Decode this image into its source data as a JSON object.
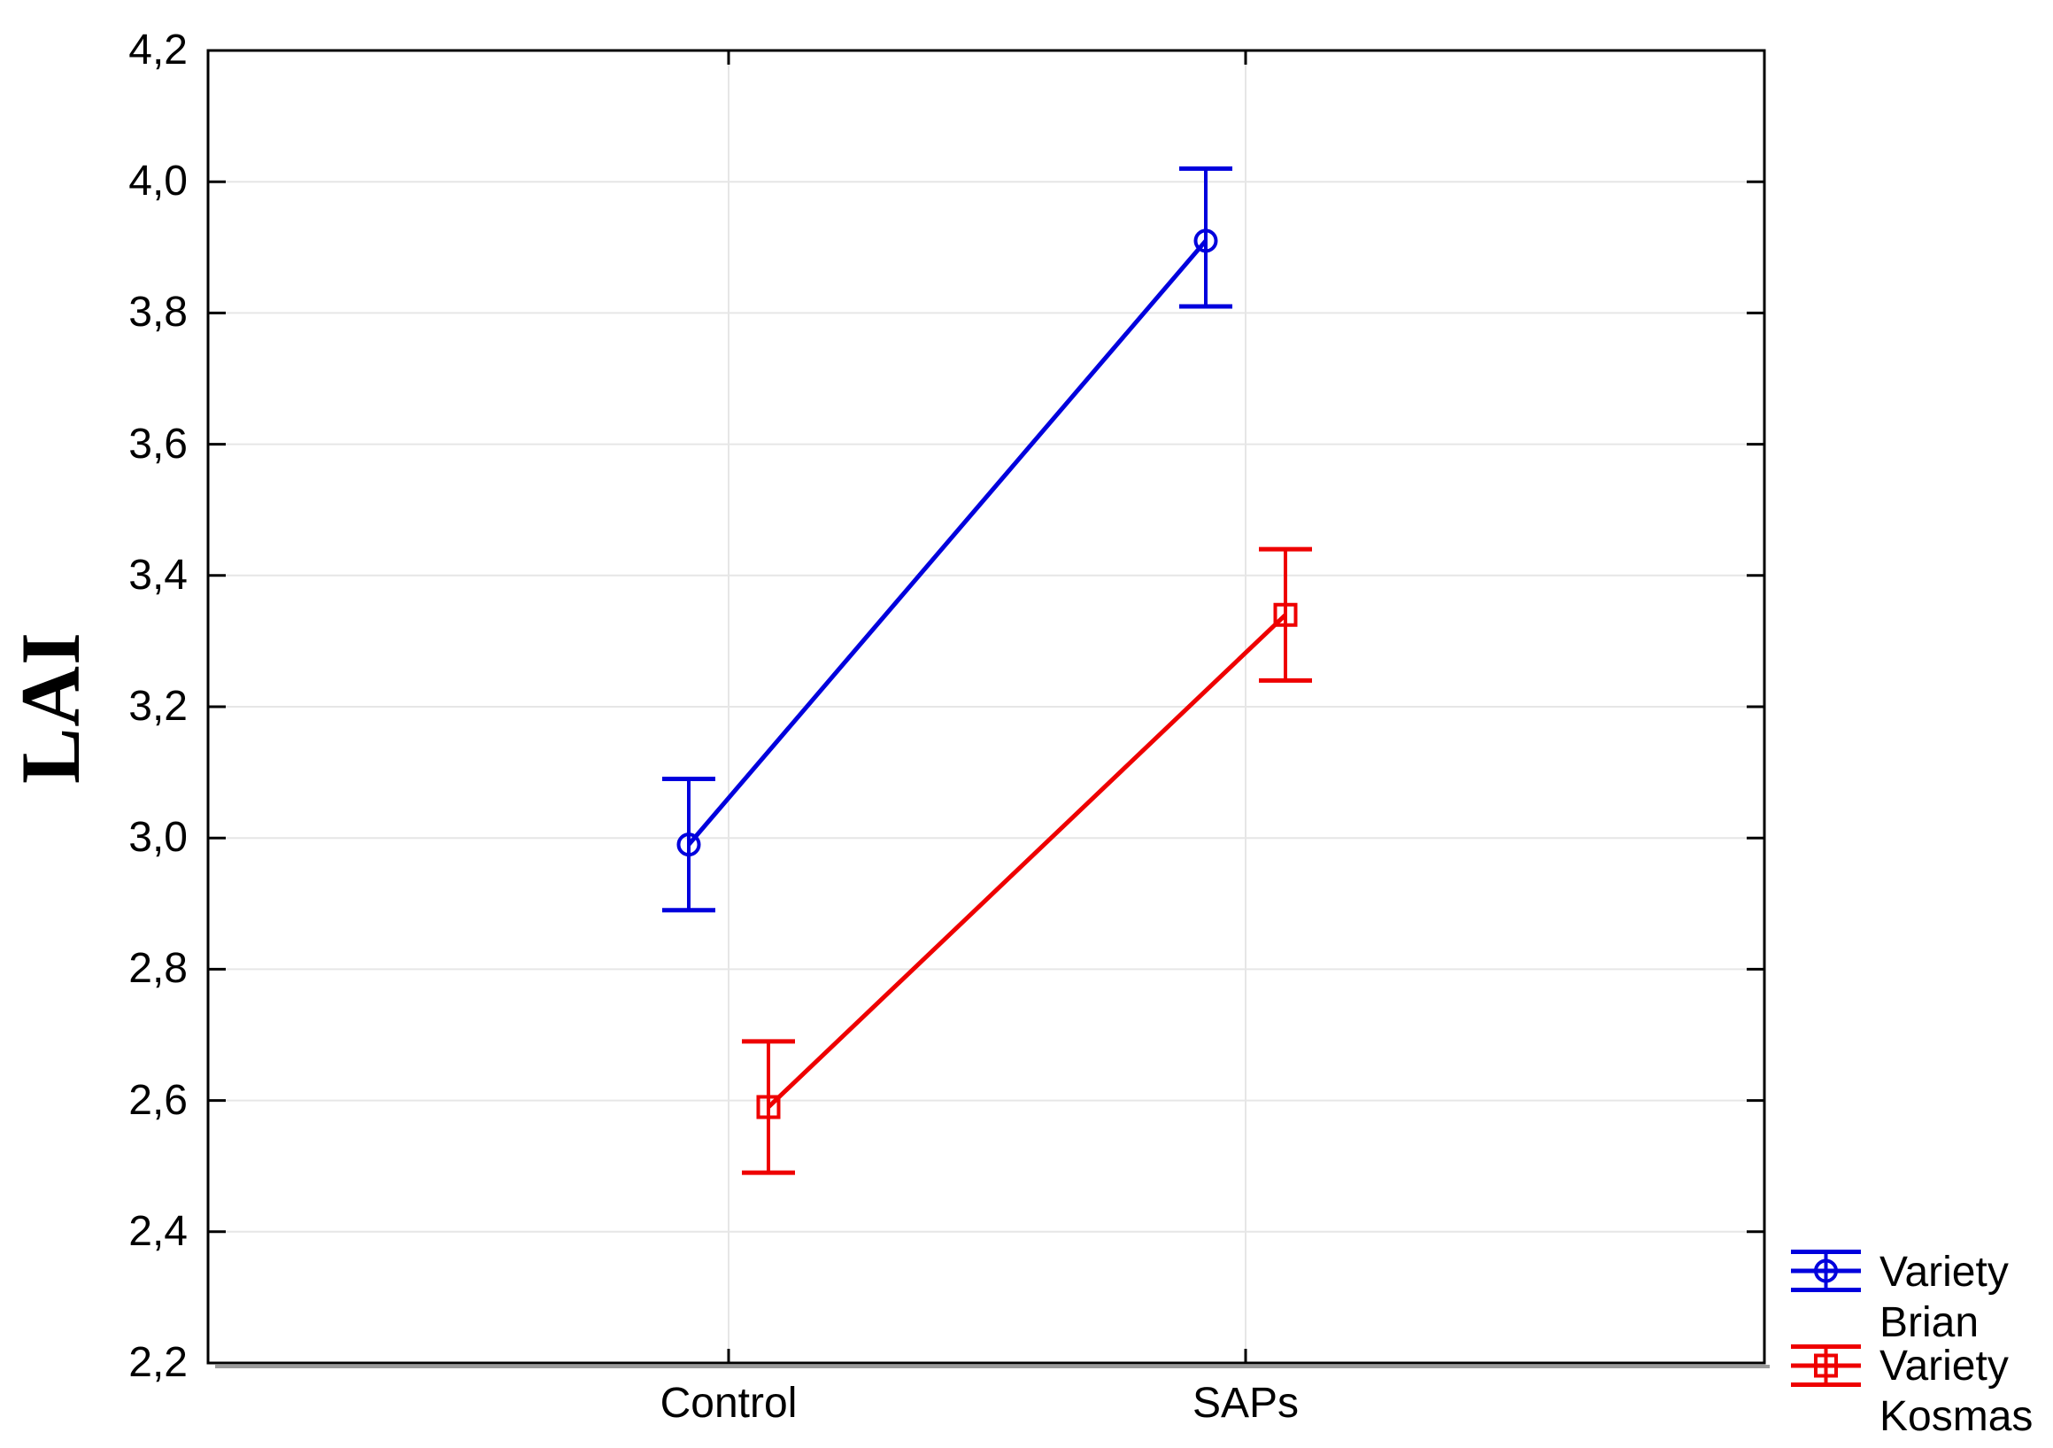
{
  "figure": {
    "background_color": "#ffffff",
    "frame_color": "#000000",
    "frame_shadow_color": "#9a9a9a",
    "grid_color": "#e6e6e6",
    "text_color": "#000000",
    "y_axis_title": "LAI",
    "y_tick_labels": [
      "4,2",
      "4,0",
      "3,8",
      "3,6",
      "3,4",
      "3,2",
      "3,0",
      "2,8",
      "2,6",
      "2,4",
      "2,2"
    ],
    "x_tick_labels": [
      "Control",
      "SAPs"
    ]
  },
  "legend": {
    "items": [
      {
        "label_line1": "Variety",
        "label_line2": "Brian",
        "color": "#0000dd",
        "marker": "circle"
      },
      {
        "label_line1": "Variety",
        "label_line2": "Kosmas",
        "color": "#ee0000",
        "marker": "square"
      }
    ]
  },
  "chart_data": {
    "type": "line",
    "subtype": "means-with-error-bars",
    "title": "",
    "xlabel": "",
    "ylabel": "LAI",
    "categories": [
      "Control",
      "SAPs"
    ],
    "ylim": [
      2.2,
      4.2
    ],
    "y_tick_step": 0.2,
    "decimal_separator": ",",
    "grid": true,
    "legend_position": "outside-bottom-right",
    "series": [
      {
        "name": "Variety Brian",
        "marker": "circle",
        "color": "#0000dd",
        "means": [
          2.99,
          3.91
        ],
        "ci_low": [
          2.89,
          3.81
        ],
        "ci_high": [
          3.09,
          4.02
        ]
      },
      {
        "name": "Variety Kosmas",
        "marker": "square",
        "color": "#ee0000",
        "means": [
          2.59,
          3.34
        ],
        "ci_low": [
          2.49,
          3.24
        ],
        "ci_high": [
          2.69,
          3.44
        ]
      }
    ]
  }
}
